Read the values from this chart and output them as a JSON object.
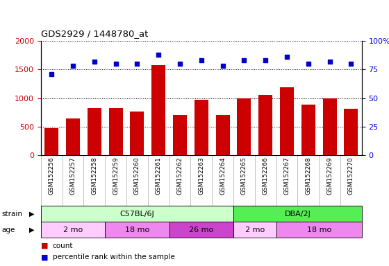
{
  "title": "GDS2929 / 1448780_at",
  "samples": [
    "GSM152256",
    "GSM152257",
    "GSM152258",
    "GSM152259",
    "GSM152260",
    "GSM152261",
    "GSM152262",
    "GSM152263",
    "GSM152264",
    "GSM152265",
    "GSM152266",
    "GSM152267",
    "GSM152268",
    "GSM152269",
    "GSM152270"
  ],
  "counts": [
    470,
    650,
    830,
    830,
    760,
    1580,
    700,
    970,
    700,
    990,
    1060,
    1190,
    890,
    1000,
    820
  ],
  "percentiles": [
    71,
    78,
    82,
    80,
    80,
    88,
    80,
    83,
    78,
    83,
    83,
    86,
    80,
    82,
    80
  ],
  "bar_color": "#cc0000",
  "dot_color": "#0000cc",
  "ylim_left": [
    0,
    2000
  ],
  "ylim_right": [
    0,
    100
  ],
  "yticks_left": [
    0,
    500,
    1000,
    1500,
    2000
  ],
  "yticks_right": [
    0,
    25,
    50,
    75,
    100
  ],
  "background_color": "#ffffff",
  "tick_label_color_left": "#cc0000",
  "tick_label_color_right": "#0000cc",
  "strain_groups": [
    {
      "text": "C57BL/6J",
      "start": 0,
      "end": 9,
      "color": "#ccffcc"
    },
    {
      "text": "DBA/2J",
      "start": 9,
      "end": 15,
      "color": "#55ee55"
    }
  ],
  "age_groups": [
    {
      "text": "2 mo",
      "start": 0,
      "end": 3,
      "color": "#ffccff"
    },
    {
      "text": "18 mo",
      "start": 3,
      "end": 6,
      "color": "#ee88ee"
    },
    {
      "text": "26 mo",
      "start": 6,
      "end": 9,
      "color": "#cc44cc"
    },
    {
      "text": "2 mo",
      "start": 9,
      "end": 11,
      "color": "#ffccff"
    },
    {
      "text": "18 mo",
      "start": 11,
      "end": 15,
      "color": "#ee88ee"
    }
  ]
}
